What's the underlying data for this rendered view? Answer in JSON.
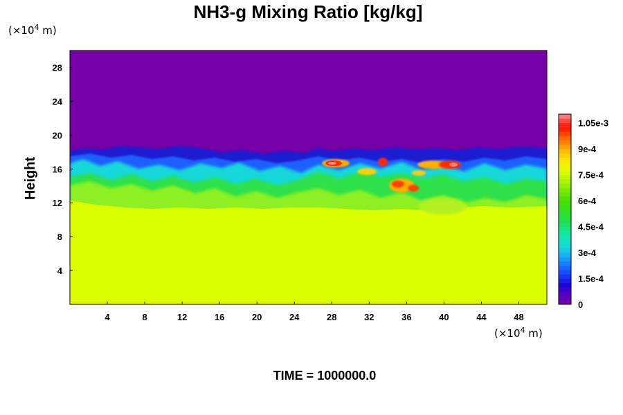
{
  "chart_data": {
    "type": "heatmap",
    "title": "NH3-g Mixing Ratio [kg/kg]",
    "ylabel": "Height",
    "x_unit": {
      "prefix": "(×10",
      "exponent": "4",
      "suffix": " m)"
    },
    "y_unit": {
      "prefix": "(×10",
      "exponent": "4",
      "suffix": " m)"
    },
    "x_ticks": [
      4,
      8,
      12,
      16,
      20,
      24,
      28,
      32,
      36,
      40,
      44,
      48
    ],
    "y_ticks": [
      4,
      8,
      12,
      16,
      20,
      24,
      28
    ],
    "xlim": [
      0,
      51
    ],
    "ylim": [
      0,
      30
    ],
    "x_tick_labels": [
      "4",
      "8",
      "12",
      "16",
      "20",
      "24",
      "28",
      "32",
      "36",
      "40",
      "44",
      "48"
    ],
    "y_tick_labels": [
      "4",
      "8",
      "12",
      "16",
      "20",
      "24",
      "28"
    ],
    "colorbar": {
      "range": [
        0,
        0.0011
      ],
      "tick_values": [
        0,
        0.00015,
        0.0003,
        0.00045,
        0.0006,
        0.00075,
        0.0009,
        0.00105
      ],
      "tick_labels": [
        "0",
        "1.5e-4",
        "3e-4",
        "4.5e-4",
        "6e-4",
        "7.5e-4",
        "9e-4",
        "1.05e-3"
      ]
    },
    "fields": {
      "lower_layer_value": 0.00076,
      "upper_layer_value": 0.0,
      "interface_height_approx": 17,
      "mixing_zone_height_range": [
        11,
        18.5
      ],
      "peak_value_approx": 0.00107
    },
    "footer": "TIME = 1000000.0"
  }
}
